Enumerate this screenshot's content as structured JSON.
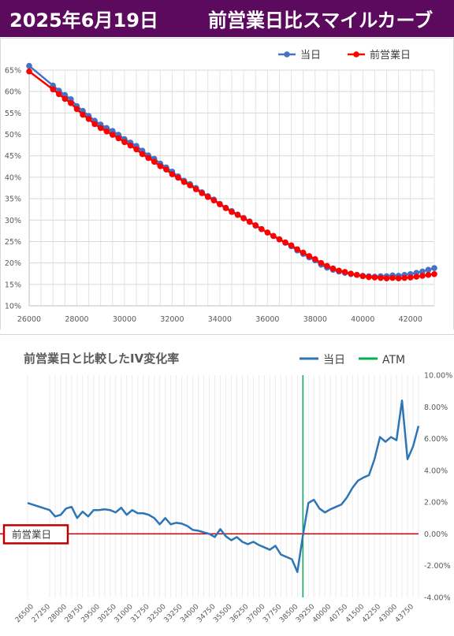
{
  "header": {
    "date": "2025年6月19日",
    "title": "前営業日比スマイルカーブ"
  },
  "colors": {
    "header_bg": "#5b0a5e",
    "today": "#4472c4",
    "prev": "#ff0000",
    "diff": "#2e75b6",
    "atm": "#00b050",
    "zero": "#c00000"
  },
  "chart_data": [
    {
      "type": "line",
      "title": "",
      "legend": [
        "当日",
        "前営業日"
      ],
      "legend_position": "top-right",
      "xlim": [
        26000,
        43000
      ],
      "x_ticks": [
        26000,
        28000,
        30000,
        32000,
        34000,
        36000,
        38000,
        40000,
        42000
      ],
      "ylim": [
        10,
        65
      ],
      "y_ticks": [
        "10%",
        "15%",
        "20%",
        "25%",
        "30%",
        "35%",
        "40%",
        "45%",
        "50%",
        "55%",
        "60%",
        "65%"
      ],
      "grid": true,
      "series": [
        {
          "name": "当日",
          "x": [
            26000,
            27000,
            27250,
            27500,
            27750,
            28000,
            28250,
            28500,
            28750,
            29000,
            29250,
            29500,
            29750,
            30000,
            30250,
            30500,
            30750,
            31000,
            31250,
            31500,
            31750,
            32000,
            32250,
            32500,
            32750,
            33000,
            33250,
            33500,
            33750,
            34000,
            34250,
            34500,
            34750,
            35000,
            35250,
            35500,
            35750,
            36000,
            36250,
            36500,
            36750,
            37000,
            37250,
            37500,
            37750,
            38000,
            38250,
            38500,
            38750,
            39000,
            39250,
            39500,
            39750,
            40000,
            40250,
            40500,
            40750,
            41000,
            41250,
            41500,
            41750,
            42000,
            42250,
            42500,
            42750,
            43000
          ],
          "y": [
            66.0,
            61.4,
            60.2,
            59.2,
            58.2,
            56.6,
            55.5,
            54.3,
            53.2,
            52.3,
            51.5,
            50.8,
            49.9,
            48.9,
            48.1,
            47.3,
            46.2,
            45.1,
            44.3,
            43.2,
            42.3,
            41.3,
            40.2,
            39.2,
            38.4,
            37.5,
            36.5,
            35.6,
            34.8,
            33.8,
            32.9,
            32.1,
            31.3,
            30.5,
            29.7,
            28.7,
            27.9,
            27.1,
            26.3,
            25.5,
            24.7,
            23.9,
            22.9,
            22.1,
            21.3,
            20.6,
            19.6,
            18.9,
            18.4,
            18.0,
            17.7,
            17.4,
            17.2,
            17.0,
            16.9,
            16.8,
            16.9,
            16.9,
            17.1,
            17.0,
            17.2,
            17.4,
            17.7,
            18.0,
            18.4,
            18.8
          ]
        },
        {
          "name": "前営業日",
          "x": [
            26000,
            27000,
            27250,
            27500,
            27750,
            28000,
            28250,
            28500,
            28750,
            29000,
            29250,
            29500,
            29750,
            30000,
            30250,
            30500,
            30750,
            31000,
            31250,
            31500,
            31750,
            32000,
            32250,
            32500,
            32750,
            33000,
            33250,
            33500,
            33750,
            34000,
            34250,
            34500,
            34750,
            35000,
            35250,
            35500,
            35750,
            36000,
            36250,
            36500,
            36750,
            37000,
            37250,
            37500,
            37750,
            38000,
            38250,
            38500,
            38750,
            39000,
            39250,
            39500,
            39750,
            40000,
            40250,
            40500,
            40750,
            41000,
            41250,
            41500,
            41750,
            42000,
            42250,
            42500,
            42750,
            43000
          ],
          "y": [
            64.7,
            60.5,
            59.4,
            58.3,
            57.3,
            55.9,
            54.6,
            53.6,
            52.4,
            51.5,
            50.7,
            49.9,
            49.1,
            48.2,
            47.4,
            46.5,
            45.4,
            44.5,
            43.6,
            42.6,
            41.8,
            40.7,
            39.9,
            38.9,
            38.1,
            37.2,
            36.3,
            35.4,
            34.6,
            33.7,
            32.8,
            31.9,
            31.2,
            30.4,
            29.6,
            28.8,
            27.9,
            27.1,
            26.3,
            25.5,
            24.8,
            24.1,
            23.2,
            22.4,
            21.6,
            20.9,
            20.0,
            19.3,
            18.7,
            18.2,
            17.9,
            17.5,
            17.2,
            16.9,
            16.7,
            16.6,
            16.5,
            16.4,
            16.5,
            16.4,
            16.5,
            16.6,
            16.8,
            17.0,
            17.2,
            17.4
          ]
        }
      ]
    },
    {
      "type": "line",
      "title": "前営業日と比較したIV変化率",
      "legend": [
        "当日",
        "ATM"
      ],
      "legend_position": "top-right",
      "ylim": [
        -4,
        10
      ],
      "y_ticks": [
        "-4.00%",
        "-2.00%",
        "0.00%",
        "2.00%",
        "4.00%",
        "6.00%",
        "8.00%",
        "10.00%"
      ],
      "x_tick_labels": [
        "26500",
        "27250",
        "28000",
        "28750",
        "29500",
        "30250",
        "31000",
        "31750",
        "32500",
        "33250",
        "34000",
        "34750",
        "35500",
        "36250",
        "37000",
        "37750",
        "38500",
        "39250",
        "40000",
        "40750",
        "41500",
        "42250",
        "43000",
        "43750"
      ],
      "atm": 38500,
      "reference_label": "前営業日",
      "series": [
        {
          "name": "当日",
          "x": [
            26000,
            27000,
            27250,
            27500,
            27750,
            28000,
            28250,
            28500,
            28750,
            29000,
            29250,
            29500,
            29750,
            30000,
            30250,
            30500,
            30750,
            31000,
            31250,
            31500,
            31750,
            32000,
            32250,
            32500,
            32750,
            33000,
            33250,
            33500,
            33750,
            34000,
            34250,
            34500,
            34750,
            35000,
            35250,
            35500,
            35750,
            36000,
            36250,
            36500,
            36750,
            37000,
            37250,
            37500,
            37750,
            38000,
            38250,
            38500,
            38750,
            39000,
            39250,
            39500,
            39750,
            40000,
            40250,
            40500,
            40750,
            41000,
            41250,
            41500,
            41750,
            42000,
            42250,
            42500,
            42750,
            43000,
            43250,
            43500,
            43750
          ],
          "y": [
            1.95,
            1.5,
            1.1,
            1.2,
            1.6,
            1.7,
            1.0,
            1.4,
            1.1,
            1.5,
            1.5,
            1.55,
            1.5,
            1.35,
            1.65,
            1.2,
            1.5,
            1.3,
            1.3,
            1.2,
            1.0,
            0.6,
            1.0,
            0.6,
            0.7,
            0.65,
            0.5,
            0.25,
            0.2,
            0.1,
            0.0,
            -0.2,
            0.3,
            -0.15,
            -0.4,
            -0.2,
            -0.5,
            -0.65,
            -0.5,
            -0.7,
            -0.85,
            -1.0,
            -0.75,
            -1.3,
            -1.45,
            -1.6,
            -2.4,
            -0.1,
            1.95,
            2.15,
            1.6,
            1.35,
            1.55,
            1.7,
            1.85,
            2.3,
            2.9,
            3.35,
            3.55,
            3.7,
            4.7,
            6.1,
            5.8,
            6.1,
            5.9,
            8.4,
            4.7,
            5.5,
            6.8
          ]
        }
      ]
    }
  ]
}
